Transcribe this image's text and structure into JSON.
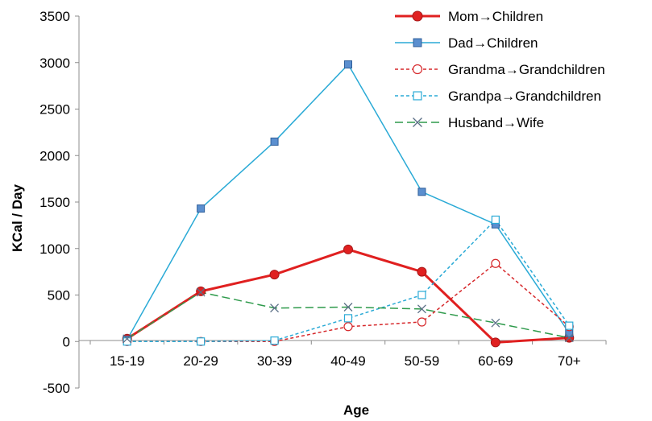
{
  "chart_data": {
    "type": "line",
    "title": "",
    "xlabel": "Age",
    "ylabel": "KCal / Day",
    "categories": [
      "15-19",
      "20-29",
      "30-39",
      "40-49",
      "50-59",
      "60-69",
      "70+"
    ],
    "ylim": [
      -500,
      3500
    ],
    "yticks": [
      -500,
      0,
      500,
      1000,
      1500,
      2000,
      2500,
      3000,
      3500
    ],
    "ytick_labels": [
      "-500",
      "0",
      "500",
      "1000",
      "1500",
      "2000",
      "2500",
      "3000",
      "3500"
    ],
    "grid": false,
    "legend_position": "top-right",
    "series": [
      {
        "name": "Mom→Children",
        "values": [
          30,
          540,
          720,
          990,
          750,
          -10,
          40
        ],
        "color": "#e02020",
        "dash": "solid",
        "marker": "circle-filled",
        "width": "thick"
      },
      {
        "name": "Dad→Children",
        "values": [
          20,
          1430,
          2150,
          2980,
          1610,
          1260,
          90
        ],
        "color": "#2aaad6",
        "dash": "solid",
        "marker": "square-filled",
        "marker_fill": "#5b8fcf",
        "width": "normal"
      },
      {
        "name": "Grandma→Grandchildren",
        "values": [
          0,
          0,
          0,
          160,
          210,
          840,
          160
        ],
        "color": "#d6282b",
        "dash": "dashed",
        "marker": "circle-open",
        "width": "normal"
      },
      {
        "name": "Grandpa→Grandchildren",
        "values": [
          0,
          0,
          10,
          250,
          500,
          1310,
          170
        ],
        "color": "#2aaad6",
        "dash": "dashed",
        "marker": "square-open",
        "width": "normal"
      },
      {
        "name": "Husband→Wife",
        "values": [
          30,
          530,
          360,
          370,
          350,
          200,
          40
        ],
        "color": "#2e9a4b",
        "dash": "long-dash",
        "marker": "x",
        "marker_color": "#5b6f86",
        "width": "normal"
      }
    ]
  }
}
